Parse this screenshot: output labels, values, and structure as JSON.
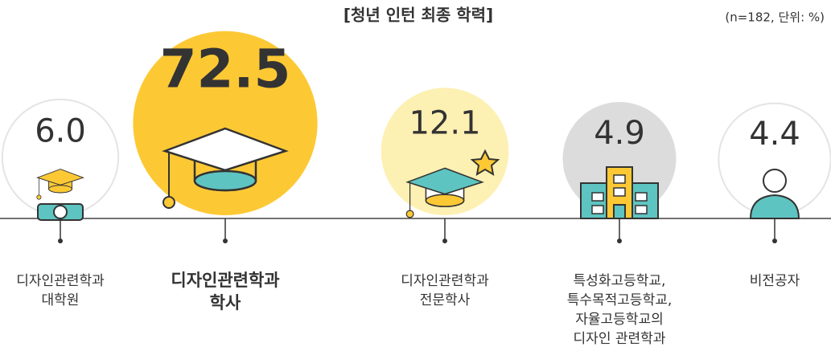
{
  "chart_data": {
    "type": "bubble",
    "title": "[청년 인턴 최종 학력]",
    "note": "(n=182, 단위: %)",
    "categories": [
      [
        "디자인관련학과",
        "대학원"
      ],
      [
        "디자인관련학과",
        "학사"
      ],
      [
        "디자인관련학과",
        "전문학사"
      ],
      [
        "특성화고등학교,",
        "특수목적고등학교,",
        "자율고등학교의",
        "디자인 관련학과"
      ],
      [
        "비전공자"
      ]
    ],
    "values": [
      6.0,
      72.5,
      12.1,
      4.9,
      4.4
    ],
    "value_labels": [
      "6.0",
      "72.5",
      "12.1",
      "4.9",
      "4.4"
    ],
    "colors": [
      "#ffffff",
      "#fcc935",
      "#fdf0b3",
      "#dcdcdc",
      "#ffffff"
    ]
  }
}
